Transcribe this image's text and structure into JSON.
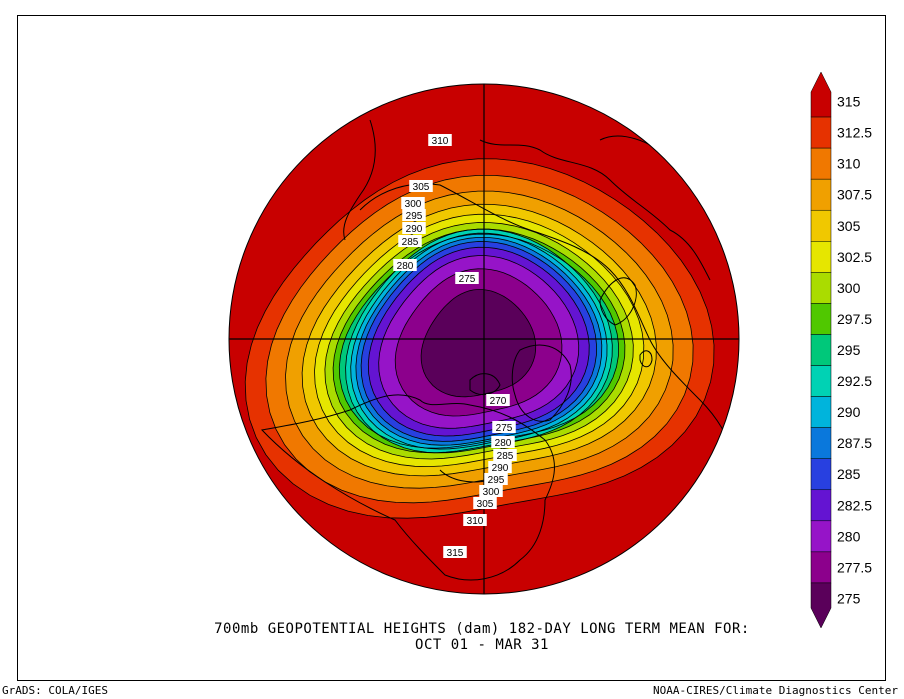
{
  "map": {
    "projection": "north polar stereographic",
    "field": "700mb geopotential height",
    "units": "dam",
    "contour_interval": 2.5,
    "inline_contour_labels": [
      {
        "value": "310",
        "region": "northern Pacific / Siberia side"
      },
      {
        "value": "305",
        "region": "Siberia"
      },
      {
        "value": "300",
        "region": "Siberia"
      },
      {
        "value": "295",
        "region": "Siberia"
      },
      {
        "value": "290",
        "region": "eastern Siberia"
      },
      {
        "value": "285",
        "region": "eastern Siberia"
      },
      {
        "value": "280",
        "region": "Siberia"
      },
      {
        "value": "275",
        "region": "Arctic Ocean"
      },
      {
        "value": "270",
        "region": "Baffin Island"
      },
      {
        "value": "275",
        "region": "Hudson Bay"
      },
      {
        "value": "280",
        "region": "Hudson Bay"
      },
      {
        "value": "285",
        "region": "Canada"
      },
      {
        "value": "290",
        "region": "Canada"
      },
      {
        "value": "295",
        "region": "Great Lakes"
      },
      {
        "value": "300",
        "region": "Great Lakes"
      },
      {
        "value": "305",
        "region": "eastern United States"
      },
      {
        "value": "310",
        "region": "southeastern United States"
      },
      {
        "value": "315",
        "region": "Gulf of Mexico"
      }
    ]
  },
  "colorbar": {
    "levels": [
      "315",
      "312.5",
      "310",
      "307.5",
      "305",
      "302.5",
      "300",
      "297.5",
      "295",
      "292.5",
      "290",
      "287.5",
      "285",
      "282.5",
      "280",
      "277.5",
      "275"
    ],
    "colors": [
      "#c80000",
      "#e63200",
      "#f07800",
      "#f0a000",
      "#f0c800",
      "#e6e600",
      "#aadc00",
      "#50c800",
      "#00c87a",
      "#00d2b4",
      "#00b4dc",
      "#0a78dc",
      "#2840e0",
      "#6414d2",
      "#9614c8",
      "#8c008c",
      "#5a005a"
    ]
  },
  "caption": {
    "line1": "700mb GEOPOTENTIAL HEIGHTS (dam)   182-DAY LONG TERM MEAN FOR:",
    "line2": "OCT 01 - MAR 31"
  },
  "footer": {
    "left": "GrADS: COLA/IGES",
    "right": "NOAA-CIRES/Climate Diagnostics Center"
  }
}
